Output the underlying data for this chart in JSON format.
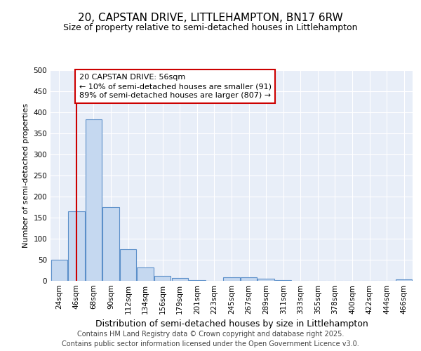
{
  "title": "20, CAPSTAN DRIVE, LITTLEHAMPTON, BN17 6RW",
  "subtitle": "Size of property relative to semi-detached houses in Littlehampton",
  "xlabel": "Distribution of semi-detached houses by size in Littlehampton",
  "ylabel": "Number of semi-detached properties",
  "categories": [
    "24sqm",
    "46sqm",
    "68sqm",
    "90sqm",
    "112sqm",
    "134sqm",
    "156sqm",
    "179sqm",
    "201sqm",
    "223sqm",
    "245sqm",
    "267sqm",
    "289sqm",
    "311sqm",
    "333sqm",
    "355sqm",
    "378sqm",
    "400sqm",
    "422sqm",
    "444sqm",
    "466sqm"
  ],
  "values": [
    50,
    165,
    383,
    175,
    75,
    31,
    12,
    7,
    1,
    0,
    8,
    9,
    5,
    2,
    0,
    0,
    0,
    0,
    0,
    0,
    4
  ],
  "bar_color": "#c5d8f0",
  "bar_edge_color": "#5b8fc9",
  "vline_x": 1.0,
  "vline_color": "#cc0000",
  "annotation_title": "20 CAPSTAN DRIVE: 56sqm",
  "annotation_line1": "← 10% of semi-detached houses are smaller (91)",
  "annotation_line2": "89% of semi-detached houses are larger (807) →",
  "annotation_box_color": "#cc0000",
  "footer_line1": "Contains HM Land Registry data © Crown copyright and database right 2025.",
  "footer_line2": "Contains public sector information licensed under the Open Government Licence v3.0.",
  "bg_color": "#ffffff",
  "plot_bg_color": "#e8eef8",
  "grid_color": "#ffffff",
  "ylim": [
    0,
    500
  ],
  "yticks": [
    0,
    50,
    100,
    150,
    200,
    250,
    300,
    350,
    400,
    450,
    500
  ],
  "title_fontsize": 11,
  "subtitle_fontsize": 9,
  "xlabel_fontsize": 9,
  "ylabel_fontsize": 8,
  "tick_fontsize": 7.5,
  "footer_fontsize": 7,
  "ann_fontsize": 8
}
